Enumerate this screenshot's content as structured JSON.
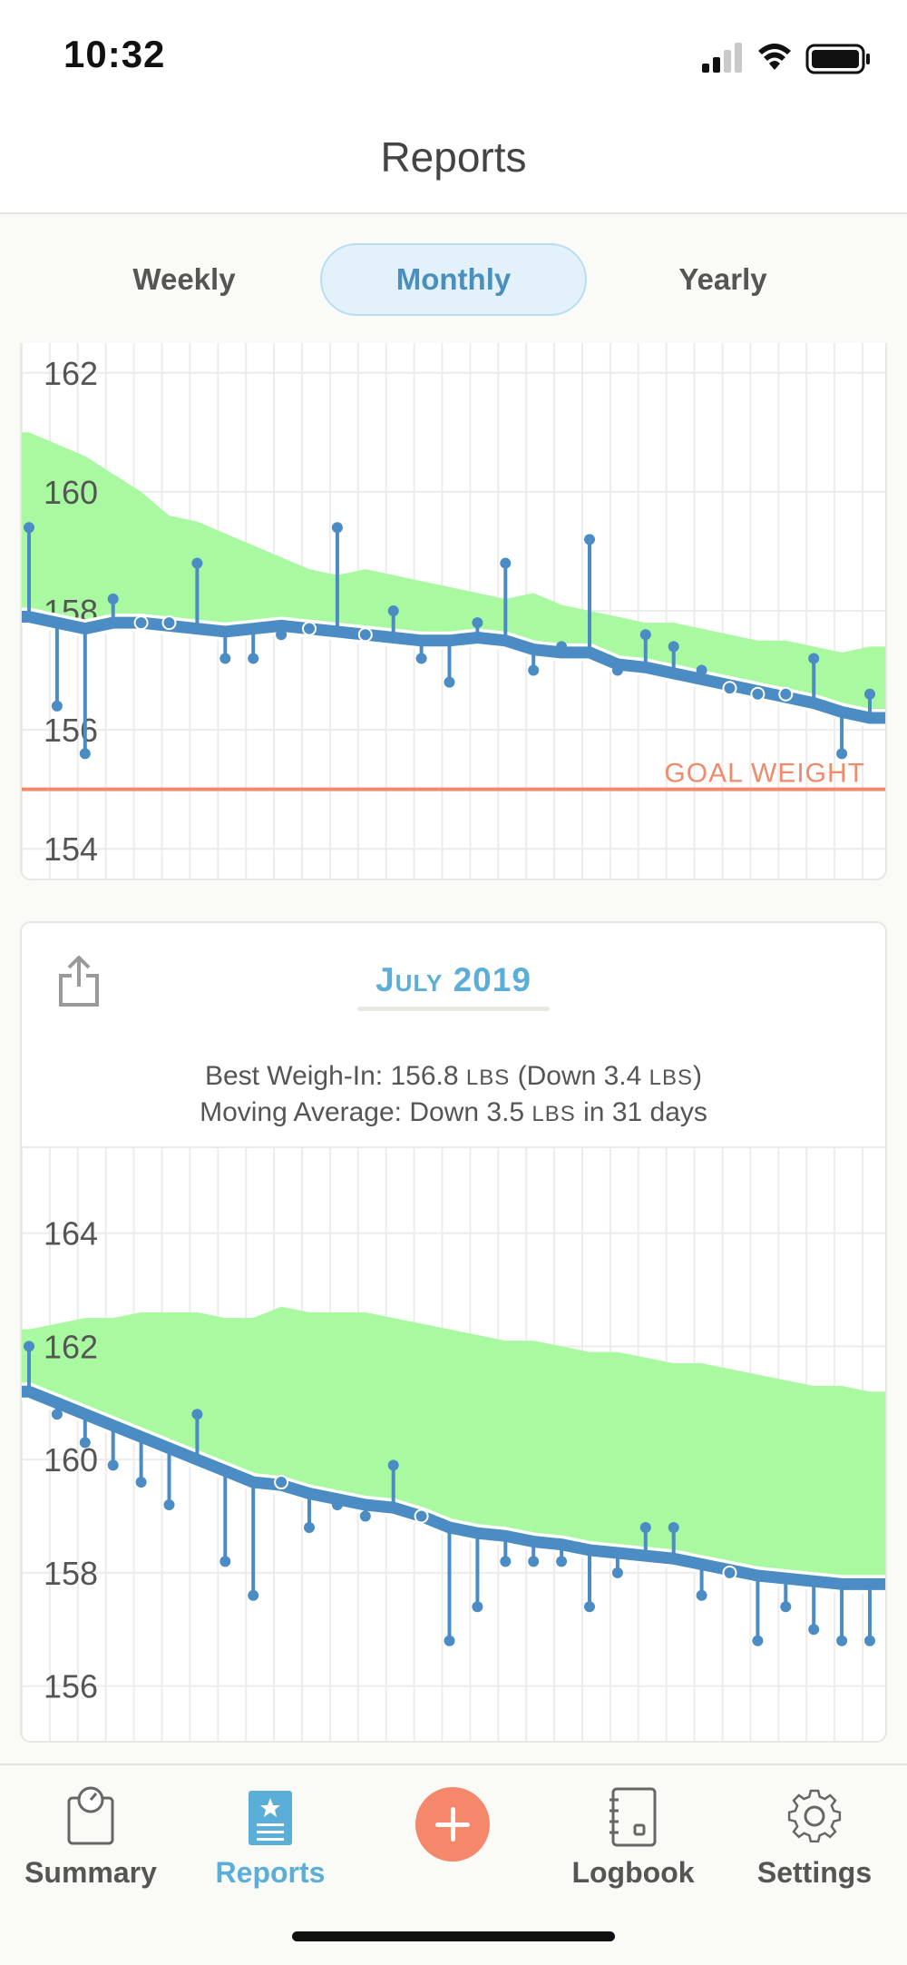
{
  "status_bar": {
    "time": "10:32"
  },
  "header": {
    "title": "Reports"
  },
  "segments": {
    "weekly": "Weekly",
    "monthly": "Monthly",
    "yearly": "Yearly",
    "selected": "Monthly"
  },
  "colors": {
    "accent": "#5aaed8",
    "line": "#4a8cc3",
    "band": "#a9f9a1",
    "goal": "#f08a6a"
  },
  "chart_data": [
    {
      "type": "line",
      "ylim": [
        153.5,
        162.5
      ],
      "yticks": [
        "162",
        "160",
        "158",
        "156",
        "154"
      ],
      "goal": {
        "label": "GOAL WEIGHT",
        "value": 155.0
      },
      "x": [
        1,
        2,
        3,
        4,
        5,
        6,
        7,
        8,
        9,
        10,
        11,
        12,
        13,
        14,
        15,
        16,
        17,
        18,
        19,
        20,
        21,
        22,
        23,
        24,
        25,
        26,
        27,
        28,
        29,
        30,
        31
      ],
      "band_top": [
        161.0,
        160.8,
        160.6,
        160.3,
        160.0,
        159.6,
        159.5,
        159.3,
        159.1,
        158.9,
        158.7,
        158.6,
        158.7,
        158.6,
        158.5,
        158.4,
        158.3,
        158.2,
        158.3,
        158.1,
        158.0,
        157.9,
        157.8,
        157.8,
        157.7,
        157.6,
        157.5,
        157.5,
        157.4,
        157.3,
        157.4
      ],
      "series": [
        {
          "values": [
            159.4,
            156.4,
            155.6,
            158.2,
            157.8,
            157.8,
            158.8,
            157.2,
            157.2,
            157.6,
            157.7,
            159.4,
            157.6,
            158.0,
            157.2,
            156.8,
            157.8,
            158.8,
            157.0,
            157.4,
            159.2,
            157.0,
            157.6,
            157.4,
            157.0,
            156.7,
            156.6,
            156.6,
            157.2,
            155.6,
            156.6
          ]
        },
        {
          "values": [
            157.9,
            157.8,
            157.7,
            157.8,
            157.8,
            157.75,
            157.7,
            157.65,
            157.7,
            157.75,
            157.7,
            157.65,
            157.6,
            157.55,
            157.5,
            157.5,
            157.55,
            157.5,
            157.35,
            157.3,
            157.3,
            157.1,
            157.05,
            156.95,
            156.85,
            156.75,
            156.65,
            156.55,
            156.45,
            156.3,
            156.2
          ]
        }
      ]
    },
    {
      "type": "line",
      "title": "July 2019",
      "ylim": [
        155.0,
        165.5
      ],
      "yticks": [
        "164",
        "162",
        "160",
        "158",
        "156"
      ],
      "x": [
        1,
        2,
        3,
        4,
        5,
        6,
        7,
        8,
        9,
        10,
        11,
        12,
        13,
        14,
        15,
        16,
        17,
        18,
        19,
        20,
        21,
        22,
        23,
        24,
        25,
        26,
        27,
        28,
        29,
        30,
        31
      ],
      "band_top": [
        162.3,
        162.4,
        162.5,
        162.5,
        162.6,
        162.6,
        162.6,
        162.5,
        162.5,
        162.7,
        162.6,
        162.6,
        162.6,
        162.5,
        162.4,
        162.3,
        162.2,
        162.1,
        162.1,
        162.0,
        161.9,
        161.9,
        161.8,
        161.7,
        161.7,
        161.6,
        161.5,
        161.4,
        161.3,
        161.3,
        161.2
      ],
      "series": [
        {
          "values": [
            162.0,
            160.8,
            160.3,
            159.9,
            159.6,
            159.2,
            160.8,
            158.2,
            157.6,
            159.6,
            158.8,
            159.2,
            159.0,
            159.9,
            159.0,
            156.8,
            157.4,
            158.2,
            158.2,
            158.2,
            157.4,
            158.0,
            158.8,
            158.8,
            157.6,
            158.0,
            156.8,
            157.4,
            157.0,
            156.8,
            156.8
          ]
        },
        {
          "values": [
            161.2,
            161.0,
            160.8,
            160.6,
            160.4,
            160.2,
            160.0,
            159.8,
            159.6,
            159.55,
            159.4,
            159.3,
            159.2,
            159.15,
            159.0,
            158.8,
            158.7,
            158.65,
            158.55,
            158.5,
            158.4,
            158.35,
            158.3,
            158.25,
            158.15,
            158.05,
            157.95,
            157.9,
            157.85,
            157.8,
            157.8
          ]
        }
      ]
    }
  ],
  "report": {
    "month_title": "July 2019",
    "best_prefix": "Best Weigh-In: 156.8 ",
    "best_unit1": "LBS",
    "best_mid": " (Down 3.4 ",
    "best_unit2": "LBS",
    "best_suffix": ")",
    "avg_prefix": "Moving Average: Down 3.5 ",
    "avg_unit": "LBS",
    "avg_suffix": " in 31 days"
  },
  "tabs": [
    {
      "label": "Summary",
      "icon": "scale-icon"
    },
    {
      "label": "Reports",
      "icon": "reports-icon"
    },
    {
      "label": "",
      "icon": "plus-icon"
    },
    {
      "label": "Logbook",
      "icon": "logbook-icon"
    },
    {
      "label": "Settings",
      "icon": "gear-icon"
    }
  ],
  "active_tab": "Reports"
}
